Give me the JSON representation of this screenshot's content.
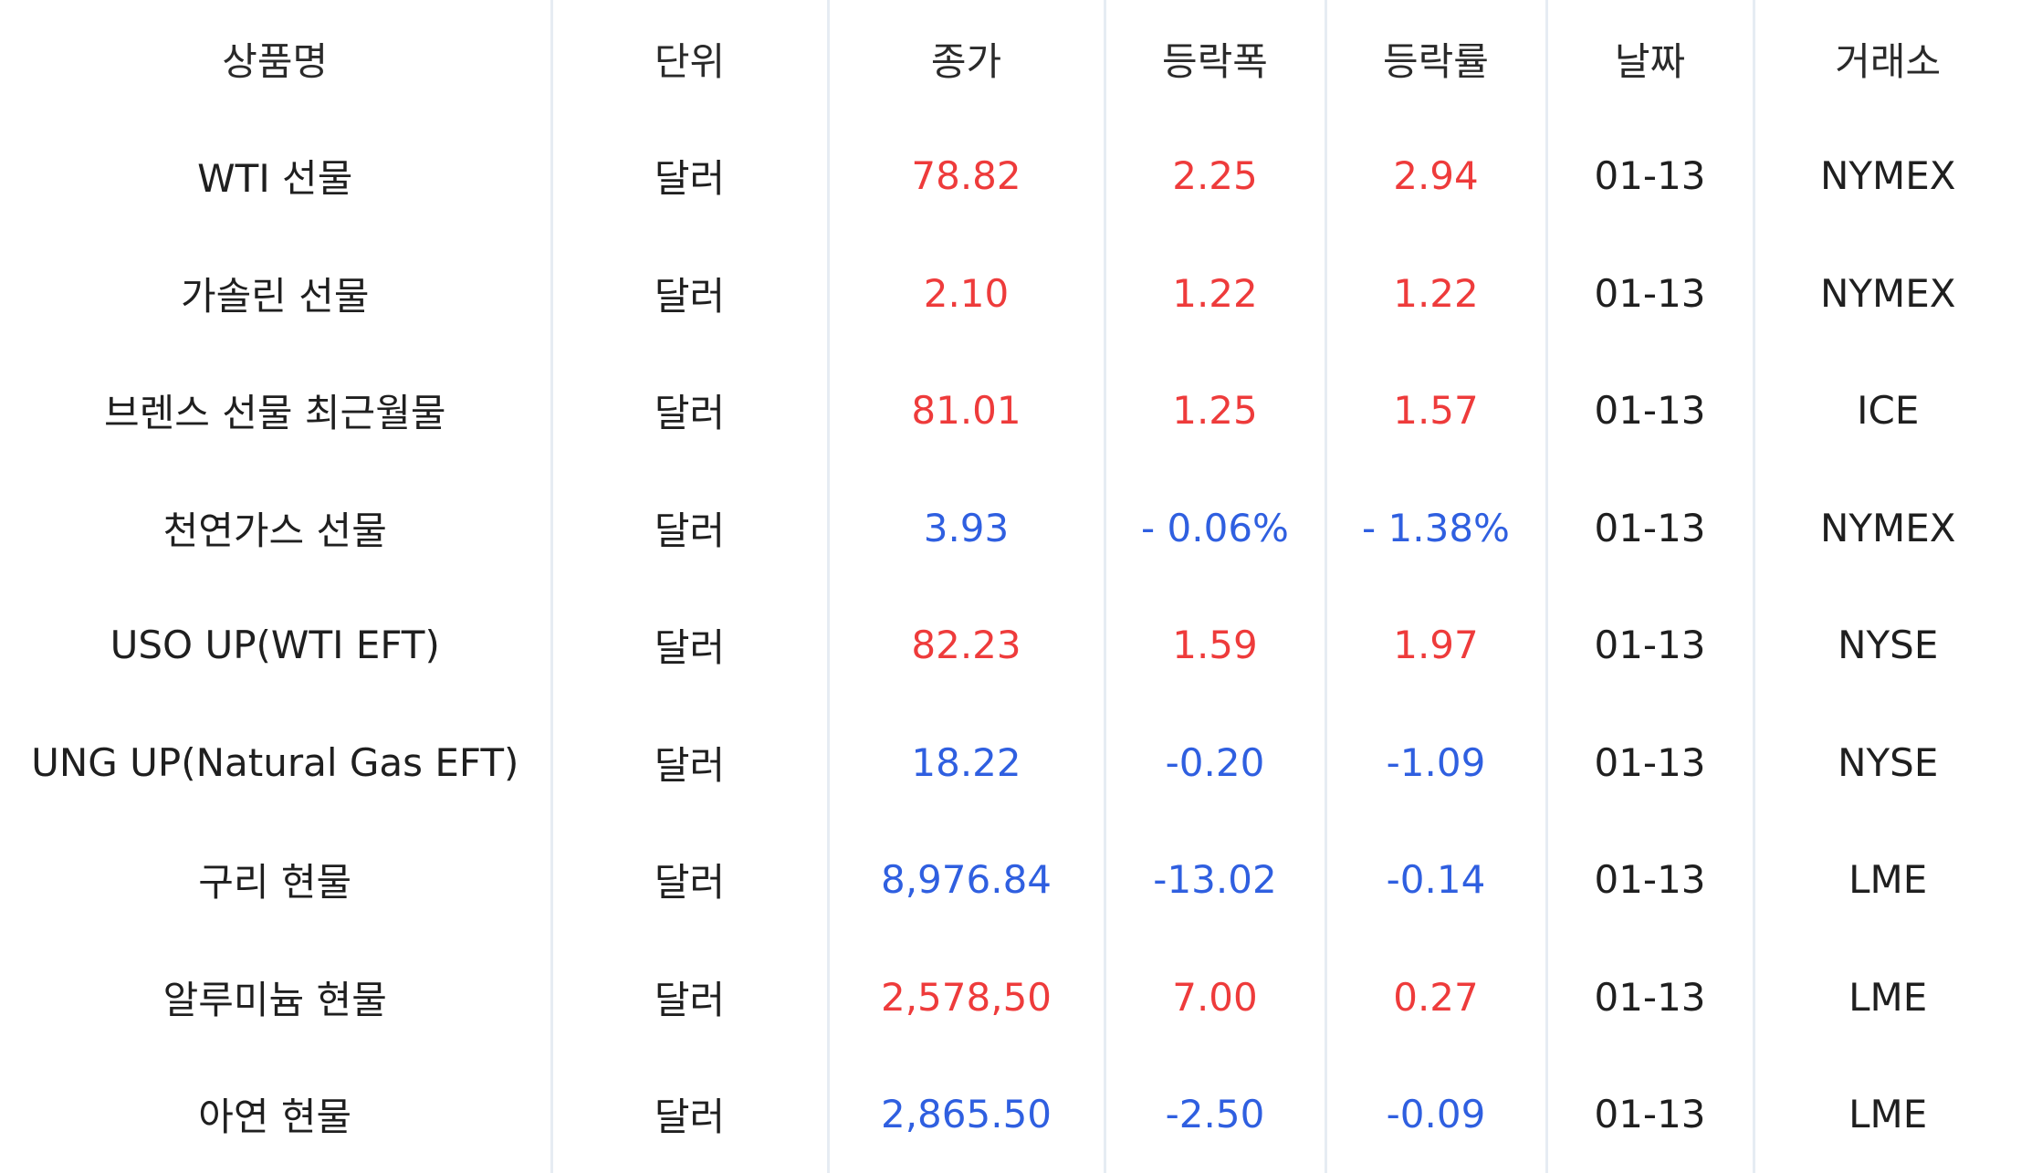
{
  "table": {
    "headers": [
      "상품명",
      "단위",
      "종가",
      "등락폭",
      "등락률",
      "날짜",
      "거래소"
    ],
    "colors": {
      "up": "#ee3b3b",
      "down": "#2f5fe0"
    },
    "rows": [
      {
        "name": "WTI 선물",
        "unit": "달러",
        "close": "78.82",
        "change": "2.25",
        "rate": "2.94",
        "date": "01-13",
        "exchange": "NYMEX",
        "direction": "up"
      },
      {
        "name": "가솔린 선물",
        "unit": "달러",
        "close": "2.10",
        "change": "1.22",
        "rate": "1.22",
        "date": "01-13",
        "exchange": "NYMEX",
        "direction": "up"
      },
      {
        "name": "브렌스 선물 최근월물",
        "unit": "달러",
        "close": "81.01",
        "change": "1.25",
        "rate": "1.57",
        "date": "01-13",
        "exchange": "ICE",
        "direction": "up"
      },
      {
        "name": "천연가스 선물",
        "unit": "달러",
        "close": "3.93",
        "change": "- 0.06%",
        "rate": "- 1.38%",
        "date": "01-13",
        "exchange": "NYMEX",
        "direction": "down"
      },
      {
        "name": "USO UP(WTI EFT)",
        "unit": "달러",
        "close": "82.23",
        "change": "1.59",
        "rate": "1.97",
        "date": "01-13",
        "exchange": "NYSE",
        "direction": "up"
      },
      {
        "name": "UNG UP(Natural Gas EFT)",
        "unit": "달러",
        "close": "18.22",
        "change": "-0.20",
        "rate": "-1.09",
        "date": "01-13",
        "exchange": "NYSE",
        "direction": "down"
      },
      {
        "name": "구리 현물",
        "unit": "달러",
        "close": "8,976.84",
        "change": "-13.02",
        "rate": "-0.14",
        "date": "01-13",
        "exchange": "LME",
        "direction": "down"
      },
      {
        "name": "알루미늄 현물",
        "unit": "달러",
        "close": "2,578,50",
        "change": "7.00",
        "rate": "0.27",
        "date": "01-13",
        "exchange": "LME",
        "direction": "up"
      },
      {
        "name": "아연 현물",
        "unit": "달러",
        "close": "2,865.50",
        "change": "-2.50",
        "rate": "-0.09",
        "date": "01-13",
        "exchange": "LME",
        "direction": "down"
      }
    ]
  }
}
